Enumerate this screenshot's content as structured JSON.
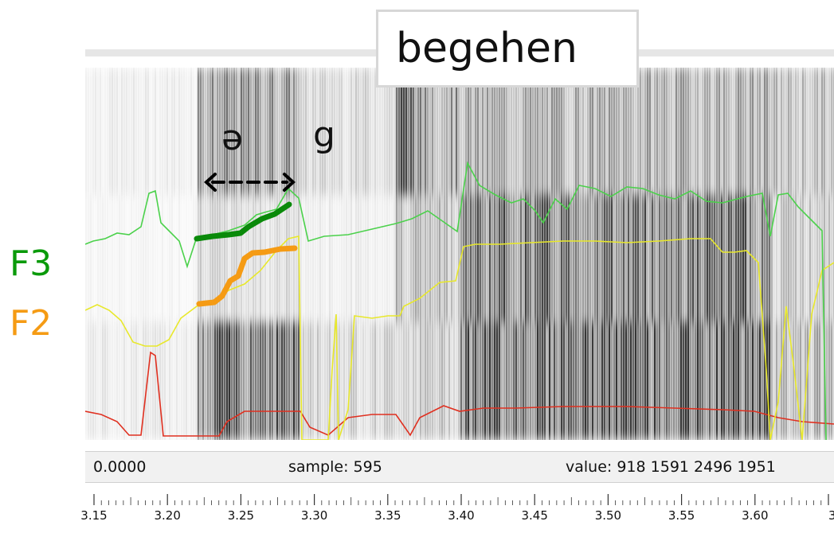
{
  "word_label": "begehen",
  "phonemes": [
    "ə",
    "g"
  ],
  "formant_labels": [
    {
      "name": "F3",
      "color": "#0a9a0a"
    },
    {
      "name": "F2",
      "color": "#f59b14"
    }
  ],
  "status": {
    "time": "0.0000",
    "sample": "sample:  595",
    "value": "value:  918 1591 2496  1951"
  },
  "time_axis": {
    "ticks": [
      "3.15",
      "3.20",
      "3.25",
      "3.30",
      "3.35",
      "3.40",
      "3.45",
      "3.50",
      "3.55",
      "3.60",
      "3"
    ]
  },
  "colors": {
    "f1_track": "#e03020",
    "f2_track": "#e8e82a",
    "f3_track": "#4bd14b",
    "f2_highlight": "#f59b14",
    "f3_highlight": "#0a8a0a"
  }
}
